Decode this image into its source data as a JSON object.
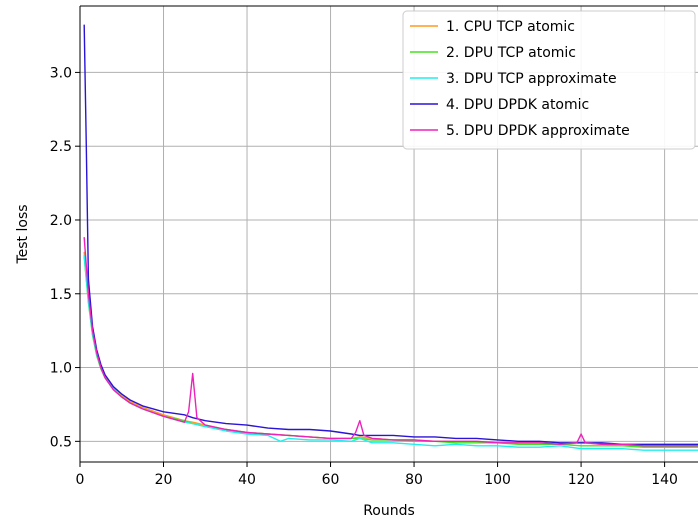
{
  "chart_data": {
    "type": "line",
    "title": "",
    "xlabel": "Rounds",
    "ylabel": "Test loss",
    "xlim": [
      0,
      148
    ],
    "ylim": [
      0.36,
      3.45
    ],
    "x_ticks": [
      0,
      20,
      40,
      60,
      80,
      100,
      120,
      140
    ],
    "y_ticks": [
      0.5,
      1.0,
      1.5,
      2.0,
      2.5,
      3.0
    ],
    "x_tick_labels": [
      "0",
      "20",
      "40",
      "60",
      "80",
      "100",
      "120",
      "140"
    ],
    "y_tick_labels": [
      "0.5",
      "1.0",
      "1.5",
      "2.0",
      "2.5",
      "3.0"
    ],
    "grid": true,
    "legend_position": "top-right",
    "series": [
      {
        "name": "1. CPU TCP atomic",
        "color": "#ff9a1f",
        "x": [
          1,
          2,
          3,
          4,
          5,
          6,
          8,
          10,
          12,
          15,
          20,
          25,
          27,
          30,
          35,
          40,
          45,
          50,
          55,
          60,
          65,
          67,
          70,
          75,
          80,
          85,
          90,
          95,
          100,
          105,
          110,
          115,
          120,
          125,
          130,
          135,
          140,
          145,
          148
        ],
        "y": [
          1.78,
          1.46,
          1.24,
          1.1,
          1.0,
          0.94,
          0.86,
          0.81,
          0.77,
          0.73,
          0.68,
          0.64,
          0.63,
          0.61,
          0.58,
          0.56,
          0.55,
          0.54,
          0.53,
          0.52,
          0.52,
          0.53,
          0.52,
          0.51,
          0.51,
          0.5,
          0.5,
          0.5,
          0.49,
          0.49,
          0.49,
          0.48,
          0.49,
          0.48,
          0.47,
          0.47,
          0.47,
          0.47,
          0.47
        ]
      },
      {
        "name": "2. DPU TCP atomic",
        "color": "#44e31f",
        "x": [
          1,
          2,
          3,
          4,
          5,
          6,
          8,
          10,
          12,
          15,
          20,
          25,
          27,
          30,
          35,
          40,
          45,
          50,
          55,
          60,
          65,
          67,
          70,
          75,
          80,
          85,
          90,
          95,
          100,
          105,
          110,
          115,
          120,
          125,
          130,
          135,
          140,
          145,
          148
        ],
        "y": [
          1.75,
          1.44,
          1.22,
          1.08,
          0.99,
          0.93,
          0.85,
          0.8,
          0.76,
          0.72,
          0.67,
          0.64,
          0.62,
          0.6,
          0.58,
          0.56,
          0.55,
          0.54,
          0.53,
          0.52,
          0.52,
          0.52,
          0.51,
          0.51,
          0.5,
          0.5,
          0.49,
          0.49,
          0.49,
          0.48,
          0.48,
          0.48,
          0.47,
          0.47,
          0.47,
          0.46,
          0.46,
          0.46,
          0.46
        ]
      },
      {
        "name": "3. DPU TCP approximate",
        "color": "#22eeee",
        "x": [
          1,
          2,
          3,
          4,
          5,
          6,
          8,
          10,
          12,
          15,
          20,
          25,
          27,
          30,
          35,
          40,
          45,
          48,
          50,
          55,
          60,
          65,
          67,
          70,
          75,
          80,
          85,
          90,
          95,
          100,
          105,
          110,
          115,
          120,
          125,
          130,
          135,
          140,
          145,
          148
        ],
        "y": [
          1.76,
          1.45,
          1.23,
          1.09,
          1.0,
          0.93,
          0.86,
          0.8,
          0.76,
          0.72,
          0.67,
          0.63,
          0.62,
          0.6,
          0.57,
          0.55,
          0.54,
          0.5,
          0.52,
          0.51,
          0.51,
          0.5,
          0.52,
          0.49,
          0.49,
          0.48,
          0.47,
          0.48,
          0.47,
          0.47,
          0.46,
          0.46,
          0.47,
          0.45,
          0.45,
          0.45,
          0.44,
          0.44,
          0.44,
          0.44
        ]
      },
      {
        "name": "4. DPU DPDK atomic",
        "color": "#2a14d6",
        "x": [
          1,
          1.5,
          2,
          3,
          4,
          5,
          6,
          8,
          10,
          12,
          15,
          20,
          25,
          27,
          30,
          35,
          40,
          45,
          50,
          55,
          60,
          65,
          67,
          70,
          75,
          80,
          85,
          90,
          95,
          100,
          105,
          110,
          115,
          120,
          125,
          130,
          135,
          140,
          145,
          148
        ],
        "y": [
          3.32,
          2.5,
          1.6,
          1.28,
          1.12,
          1.02,
          0.95,
          0.87,
          0.82,
          0.78,
          0.74,
          0.7,
          0.68,
          0.66,
          0.64,
          0.62,
          0.61,
          0.59,
          0.58,
          0.58,
          0.57,
          0.55,
          0.54,
          0.54,
          0.54,
          0.53,
          0.53,
          0.52,
          0.52,
          0.51,
          0.5,
          0.5,
          0.49,
          0.49,
          0.49,
          0.48,
          0.48,
          0.48,
          0.48,
          0.48
        ]
      },
      {
        "name": "5. DPU DPDK approximate",
        "color": "#ee22bb",
        "x": [
          1,
          2,
          3,
          4,
          5,
          6,
          8,
          10,
          12,
          15,
          20,
          25,
          26,
          27,
          28,
          30,
          35,
          40,
          45,
          50,
          55,
          60,
          65,
          66,
          67,
          68,
          70,
          75,
          80,
          85,
          90,
          95,
          100,
          105,
          110,
          115,
          119,
          120,
          121,
          125,
          130,
          135,
          140,
          145,
          148
        ],
        "y": [
          1.88,
          1.5,
          1.25,
          1.1,
          1.0,
          0.93,
          0.85,
          0.8,
          0.76,
          0.72,
          0.67,
          0.63,
          0.7,
          0.96,
          0.66,
          0.61,
          0.58,
          0.56,
          0.55,
          0.54,
          0.53,
          0.52,
          0.52,
          0.56,
          0.64,
          0.54,
          0.52,
          0.51,
          0.51,
          0.5,
          0.5,
          0.5,
          0.49,
          0.49,
          0.49,
          0.48,
          0.49,
          0.55,
          0.49,
          0.48,
          0.48,
          0.47,
          0.47,
          0.47,
          0.47
        ]
      }
    ]
  }
}
